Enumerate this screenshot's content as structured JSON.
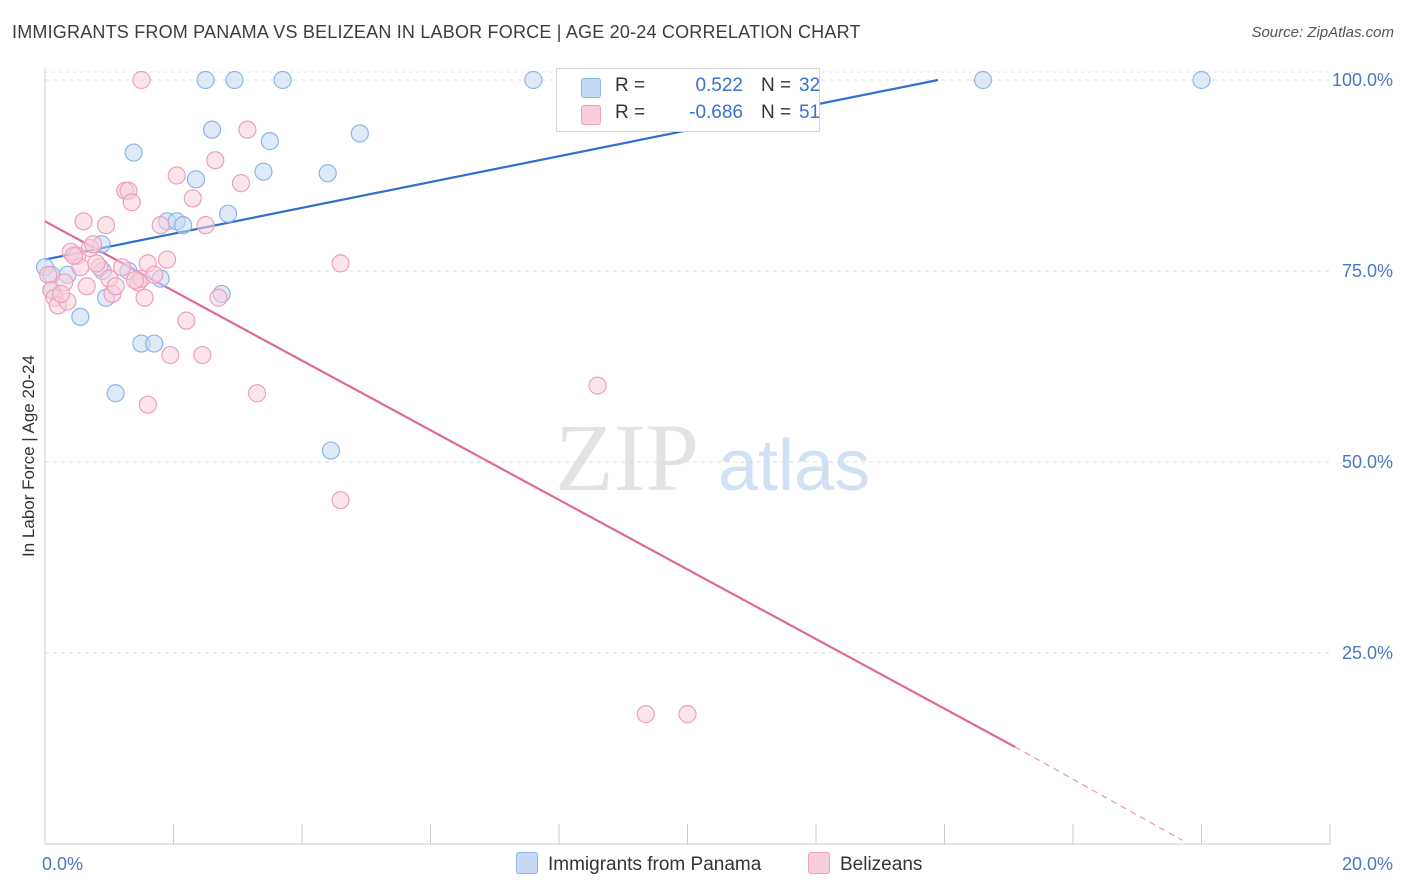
{
  "title": "IMMIGRANTS FROM PANAMA VS BELIZEAN IN LABOR FORCE | AGE 20-24 CORRELATION CHART",
  "source": "Source: ZipAtlas.com",
  "watermark": {
    "zip": "ZIP",
    "atlas": "atlas"
  },
  "colors": {
    "blue": "#8fb4e8",
    "blue_fill": "#c5d9f4",
    "blue_line": "#2f6fce",
    "pink": "#ef9fbc",
    "pink_fill": "#f8cddc",
    "pink_line": "#e0689a",
    "tick": "#4a78c2"
  },
  "legend": {
    "rows": [
      {
        "r_label": "R =",
        "r_value": "0.522",
        "n_label": "N =",
        "n_value": "32"
      },
      {
        "r_label": "R =",
        "r_value": "-0.686",
        "n_label": "N =",
        "n_value": "51"
      }
    ]
  },
  "chart_data": {
    "type": "scatter",
    "xlabel": "",
    "ylabel": "In Labor Force | Age 20-24",
    "xlim": [
      0,
      20
    ],
    "ylim": [
      0,
      100
    ],
    "x_ticks": [
      "0.0%",
      "20.0%"
    ],
    "y_ticks": [
      {
        "value": 100,
        "label": "100.0%"
      },
      {
        "value": 75,
        "label": "75.0%"
      },
      {
        "value": 50,
        "label": "50.0%"
      },
      {
        "value": 25,
        "label": "25.0%"
      }
    ],
    "grid": true,
    "legend_position": "bottom",
    "series": [
      {
        "name": "Immigrants from Panama",
        "color": "#8fb4e8",
        "points": [
          [
            0.0,
            75.5
          ],
          [
            0.1,
            72.5
          ],
          [
            0.35,
            74.5
          ],
          [
            0.55,
            69.0
          ],
          [
            0.9,
            75.0
          ],
          [
            0.88,
            78.5
          ],
          [
            0.95,
            71.5
          ],
          [
            1.1,
            59.0
          ],
          [
            1.3,
            75.0
          ],
          [
            1.38,
            90.5
          ],
          [
            1.5,
            65.5
          ],
          [
            1.7,
            65.5
          ],
          [
            1.8,
            74.0
          ],
          [
            1.9,
            81.5
          ],
          [
            2.05,
            81.5
          ],
          [
            2.15,
            81.0
          ],
          [
            2.35,
            87.0
          ],
          [
            2.6,
            93.5
          ],
          [
            2.5,
            100.0
          ],
          [
            2.95,
            100.0
          ],
          [
            2.85,
            82.5
          ],
          [
            2.75,
            72.0
          ],
          [
            3.4,
            88.0
          ],
          [
            3.5,
            92.0
          ],
          [
            3.7,
            100.0
          ],
          [
            4.4,
            87.8
          ],
          [
            4.45,
            51.5
          ],
          [
            4.9,
            93.0
          ],
          [
            7.6,
            100.0
          ],
          [
            14.6,
            100.0
          ],
          [
            18.0,
            100.0
          ],
          [
            0.1,
            74.5
          ]
        ],
        "trend": {
          "x": [
            0,
            13.9
          ],
          "y": [
            76.5,
            100.0
          ]
        }
      },
      {
        "name": "Belizeans",
        "color": "#ef9fbc",
        "points": [
          [
            0.05,
            74.5
          ],
          [
            0.1,
            72.5
          ],
          [
            0.15,
            71.5
          ],
          [
            0.2,
            70.5
          ],
          [
            0.3,
            73.5
          ],
          [
            0.35,
            71.0
          ],
          [
            0.4,
            77.5
          ],
          [
            0.5,
            77.0
          ],
          [
            0.55,
            75.5
          ],
          [
            0.6,
            81.5
          ],
          [
            0.65,
            73.0
          ],
          [
            0.7,
            78.0
          ],
          [
            0.75,
            78.5
          ],
          [
            0.85,
            75.5
          ],
          [
            0.95,
            81.0
          ],
          [
            1.0,
            74.0
          ],
          [
            1.05,
            72.0
          ],
          [
            1.1,
            73.0
          ],
          [
            1.2,
            75.5
          ],
          [
            1.25,
            85.5
          ],
          [
            1.3,
            85.5
          ],
          [
            1.35,
            84.0
          ],
          [
            1.45,
            73.5
          ],
          [
            1.5,
            74.0
          ],
          [
            1.55,
            71.5
          ],
          [
            1.6,
            76.0
          ],
          [
            1.7,
            74.5
          ],
          [
            1.8,
            81.0
          ],
          [
            1.9,
            76.5
          ],
          [
            1.95,
            64.0
          ],
          [
            1.5,
            100.0
          ],
          [
            1.6,
            57.5
          ],
          [
            2.05,
            87.5
          ],
          [
            2.2,
            68.5
          ],
          [
            2.3,
            84.5
          ],
          [
            2.45,
            64.0
          ],
          [
            2.5,
            81.0
          ],
          [
            2.65,
            89.5
          ],
          [
            2.7,
            71.5
          ],
          [
            3.05,
            86.5
          ],
          [
            3.15,
            93.5
          ],
          [
            3.3,
            59.0
          ],
          [
            4.6,
            76.0
          ],
          [
            4.6,
            45.0
          ],
          [
            8.6,
            60.0
          ],
          [
            9.35,
            17.0
          ],
          [
            10.0,
            17.0
          ],
          [
            0.45,
            77.0
          ],
          [
            0.25,
            72.0
          ],
          [
            1.4,
            73.8
          ],
          [
            0.8,
            76.0
          ]
        ],
        "trend": {
          "x": [
            0,
            15.1
          ],
          "y": [
            81.5,
            12.7
          ]
        },
        "trend_dashed": {
          "x": [
            15.1,
            17.7
          ],
          "y": [
            12.7,
            0.5
          ]
        }
      }
    ]
  },
  "bottom_legend": [
    {
      "label": "Immigrants from Panama"
    },
    {
      "label": "Belizeans"
    }
  ]
}
